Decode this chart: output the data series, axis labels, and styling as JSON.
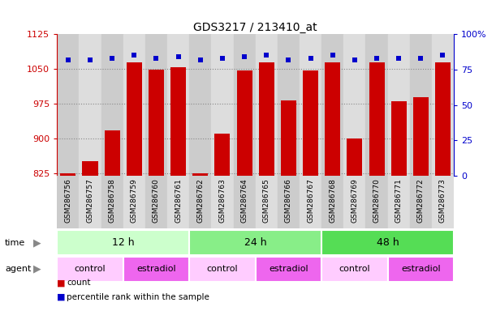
{
  "title": "GDS3217 / 213410_at",
  "samples": [
    "GSM286756",
    "GSM286757",
    "GSM286758",
    "GSM286759",
    "GSM286760",
    "GSM286761",
    "GSM286762",
    "GSM286763",
    "GSM286764",
    "GSM286765",
    "GSM286766",
    "GSM286767",
    "GSM286768",
    "GSM286769",
    "GSM286770",
    "GSM286771",
    "GSM286772",
    "GSM286773"
  ],
  "counts": [
    826,
    851,
    917,
    1065,
    1048,
    1053,
    825,
    910,
    1046,
    1065,
    983,
    1046,
    1065,
    900,
    1065,
    980,
    990,
    1065
  ],
  "percentile_ranks": [
    82,
    82,
    83,
    85,
    83,
    84,
    82,
    83,
    84,
    85,
    82,
    83,
    85,
    82,
    83,
    83,
    83,
    85
  ],
  "bar_color": "#cc0000",
  "dot_color": "#0000cc",
  "ylim_left": [
    820,
    1125
  ],
  "ylim_right": [
    0,
    100
  ],
  "yticks_left": [
    825,
    900,
    975,
    1050,
    1125
  ],
  "yticks_right": [
    0,
    25,
    50,
    75,
    100
  ],
  "time_groups": [
    {
      "label": "12 h",
      "start": 0,
      "end": 6,
      "color": "#ccffcc"
    },
    {
      "label": "24 h",
      "start": 6,
      "end": 12,
      "color": "#88ee88"
    },
    {
      "label": "48 h",
      "start": 12,
      "end": 18,
      "color": "#55dd55"
    }
  ],
  "agent_groups": [
    {
      "label": "control",
      "start": 0,
      "end": 3,
      "color": "#ffccff"
    },
    {
      "label": "estradiol",
      "start": 3,
      "end": 6,
      "color": "#ee66ee"
    },
    {
      "label": "control",
      "start": 6,
      "end": 9,
      "color": "#ffccff"
    },
    {
      "label": "estradiol",
      "start": 9,
      "end": 12,
      "color": "#ee66ee"
    },
    {
      "label": "control",
      "start": 12,
      "end": 15,
      "color": "#ffccff"
    },
    {
      "label": "estradiol",
      "start": 15,
      "end": 18,
      "color": "#ee66ee"
    }
  ],
  "col_colors": [
    "#cccccc",
    "#dddddd"
  ],
  "legend_count_color": "#cc0000",
  "legend_dot_color": "#0000cc",
  "background_color": "#ffffff",
  "grid_color": "#888888"
}
